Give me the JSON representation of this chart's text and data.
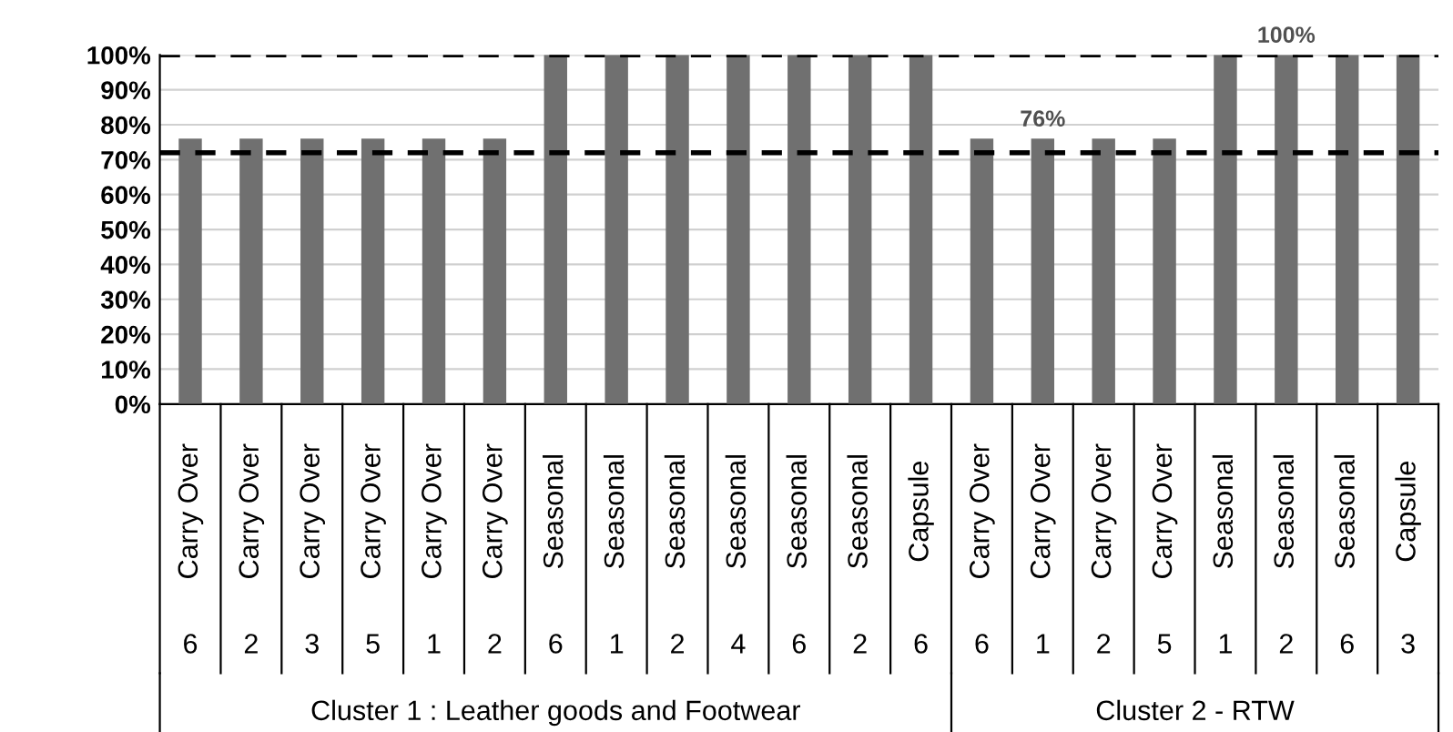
{
  "chart_data": {
    "type": "bar",
    "categories": [
      "Carry Over",
      "Carry Over",
      "Carry Over",
      "Carry Over",
      "Carry Over",
      "Carry Over",
      "Seasonal",
      "Seasonal",
      "Seasonal",
      "Seasonal",
      "Seasonal",
      "Seasonal",
      "Capsule",
      "Carry Over",
      "Carry Over",
      "Carry Over",
      "Carry Over",
      "Seasonal",
      "Seasonal",
      "Seasonal",
      "Capsule"
    ],
    "values": [
      76,
      76,
      76,
      76,
      76,
      76,
      100,
      100,
      100,
      100,
      100,
      100,
      100,
      76,
      76,
      76,
      76,
      100,
      100,
      100,
      100
    ],
    "value_labels": [
      null,
      null,
      null,
      null,
      null,
      null,
      null,
      null,
      null,
      null,
      null,
      null,
      null,
      null,
      "76%",
      null,
      null,
      null,
      "100%",
      null,
      null
    ],
    "color": "#707070",
    "ylim": [
      0,
      100
    ],
    "yticks": [
      {
        "value": 0,
        "label": "0%"
      },
      {
        "value": 10,
        "label": "10%"
      },
      {
        "value": 20,
        "label": "20%"
      },
      {
        "value": 30,
        "label": "30%"
      },
      {
        "value": 40,
        "label": "40%"
      },
      {
        "value": 50,
        "label": "50%"
      },
      {
        "value": 60,
        "label": "60%"
      },
      {
        "value": 70,
        "label": "70%"
      },
      {
        "value": 80,
        "label": "80%"
      },
      {
        "value": 90,
        "label": "90%"
      },
      {
        "value": 100,
        "label": "100%"
      }
    ],
    "grid": "y",
    "ref_lines": [
      {
        "axis": "y",
        "value": 100,
        "color": "#000000",
        "line_style": "dashed"
      },
      {
        "axis": "y",
        "value": 72,
        "color": "#000000",
        "line_style": "dashed"
      }
    ],
    "annotations": [
      "6",
      "2",
      "3",
      "5",
      "1",
      "2",
      "6",
      "1",
      "2",
      "4",
      "6",
      "2",
      "6",
      "6",
      "1",
      "2",
      "5",
      "1",
      "2",
      "6",
      "3",
      "Cluster 1 : Leather goods and Footwear",
      "Cluster 2 - RTW"
    ]
  }
}
